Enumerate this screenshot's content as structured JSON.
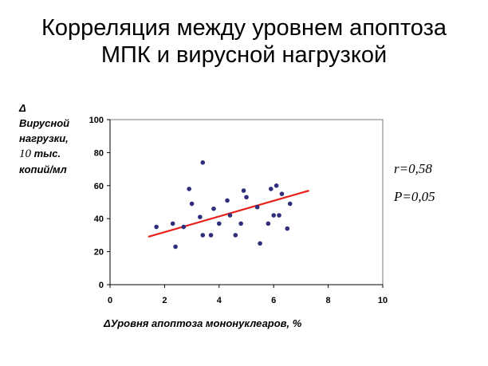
{
  "title": {
    "line1": "Корреляция между уровнем апоптоза",
    "line2": "МПК и вирусной нагрузкой"
  },
  "y_axis_label": {
    "line1": "Δ",
    "line2": "Вирусной",
    "line3": "нагрузки,",
    "line4_power": "10",
    "line4_rest": " тыс.",
    "line5": "копий/мл"
  },
  "x_axis_label": "ΔУровня апоптоза мононуклеаров, %",
  "stats": {
    "r": "r=0,58",
    "p": "P=0,05"
  },
  "colors": {
    "points": "#2e2e7a",
    "trend_line": "#e8201c",
    "axis": "#000000"
  },
  "chart_data": {
    "type": "scatter",
    "title": "Корреляция между уровнем апоптоза МПК и вирусной нагрузкой",
    "xlabel": "ΔУровня апоптоза мононуклеаров, %",
    "ylabel": "Δ Вирусной нагрузки, 10 тыс. копий/мл",
    "xlim": [
      0,
      10
    ],
    "ylim": [
      0,
      100
    ],
    "xticks": [
      0,
      2,
      4,
      6,
      8,
      10
    ],
    "yticks": [
      0,
      20,
      40,
      60,
      80,
      100
    ],
    "grid": false,
    "legend": "none",
    "points": [
      {
        "x": 1.7,
        "y": 35
      },
      {
        "x": 2.3,
        "y": 37
      },
      {
        "x": 2.4,
        "y": 23
      },
      {
        "x": 2.7,
        "y": 35
      },
      {
        "x": 2.9,
        "y": 58
      },
      {
        "x": 3.0,
        "y": 49
      },
      {
        "x": 3.3,
        "y": 41
      },
      {
        "x": 3.4,
        "y": 74
      },
      {
        "x": 3.4,
        "y": 30
      },
      {
        "x": 3.7,
        "y": 30
      },
      {
        "x": 3.8,
        "y": 46
      },
      {
        "x": 4.0,
        "y": 37
      },
      {
        "x": 4.3,
        "y": 51
      },
      {
        "x": 4.4,
        "y": 42
      },
      {
        "x": 4.6,
        "y": 30
      },
      {
        "x": 4.8,
        "y": 37
      },
      {
        "x": 4.9,
        "y": 57
      },
      {
        "x": 5.0,
        "y": 53
      },
      {
        "x": 5.4,
        "y": 47
      },
      {
        "x": 5.5,
        "y": 25
      },
      {
        "x": 5.8,
        "y": 37
      },
      {
        "x": 5.9,
        "y": 58
      },
      {
        "x": 6.0,
        "y": 42
      },
      {
        "x": 6.1,
        "y": 60
      },
      {
        "x": 6.2,
        "y": 42
      },
      {
        "x": 6.3,
        "y": 55
      },
      {
        "x": 6.5,
        "y": 34
      },
      {
        "x": 6.6,
        "y": 49
      }
    ],
    "trend_line": {
      "x": [
        1.4,
        7.3
      ],
      "y": [
        29,
        57
      ]
    }
  }
}
